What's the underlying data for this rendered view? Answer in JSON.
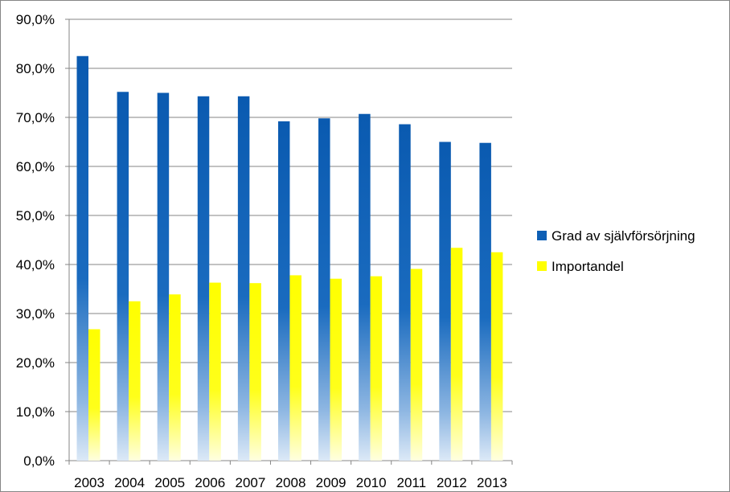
{
  "chart_data": {
    "type": "bar",
    "categories": [
      "2003",
      "2004",
      "2005",
      "2006",
      "2007",
      "2008",
      "2009",
      "2010",
      "2011",
      "2012",
      "2013"
    ],
    "series": [
      {
        "name": "Grad av självförsörjning",
        "color": "#0E5FB5",
        "values": [
          82.5,
          75.2,
          75.0,
          74.3,
          74.3,
          69.2,
          69.8,
          70.7,
          68.6,
          65.0,
          64.8
        ]
      },
      {
        "name": "Importandel",
        "color": "#FFFF00",
        "values": [
          26.8,
          32.5,
          33.9,
          36.3,
          36.2,
          37.8,
          37.1,
          37.6,
          39.1,
          43.4,
          42.5
        ]
      }
    ],
    "y_ticks": [
      "0,0%",
      "10,0%",
      "20,0%",
      "30,0%",
      "40,0%",
      "50,0%",
      "60,0%",
      "70,0%",
      "80,0%",
      "90,0%"
    ],
    "ylim": [
      0,
      90
    ],
    "grid": true,
    "legend_position": "right",
    "title": "",
    "xlabel": "",
    "ylabel": ""
  }
}
